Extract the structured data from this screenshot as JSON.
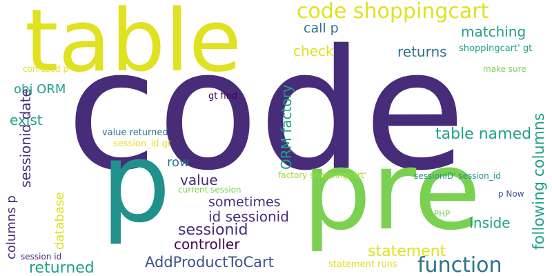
{
  "palette": {
    "dark_purple": "#472c7a",
    "deep_purple": "#440154",
    "slate_blue": "#3b528b",
    "steel_blue": "#2c728e",
    "teal": "#21918c",
    "sea_green": "#1fa187",
    "green": "#3bbb75",
    "lime": "#7ad151",
    "light_lime": "#a0da39",
    "yellow": "#e0e120"
  },
  "words": [
    {
      "text": "code",
      "color": "dark_purple"
    },
    {
      "text": "table",
      "color": "yellow"
    },
    {
      "text": "p",
      "color": "teal"
    },
    {
      "text": "pre",
      "color": "lime"
    },
    {
      "text": "code shoppingcart",
      "color": "yellow"
    },
    {
      "text": "matching",
      "color": "sea_green"
    },
    {
      "text": "call p",
      "color": "steel_blue"
    },
    {
      "text": "check",
      "color": "yellow"
    },
    {
      "text": "returns",
      "color": "steel_blue"
    },
    {
      "text": "shoppingcart' gt",
      "color": "sea_green"
    },
    {
      "text": "make sure",
      "color": "lime"
    },
    {
      "text": "confused p",
      "color": "yellow"
    },
    {
      "text": "obj ORM",
      "color": "sea_green"
    },
    {
      "text": "gt find",
      "color": "deep_purple"
    },
    {
      "text": "exist",
      "color": "sea_green"
    },
    {
      "text": "ORM factory",
      "color": "sea_green"
    },
    {
      "text": "following columns",
      "color": "sea_green"
    },
    {
      "text": "table named",
      "color": "sea_green"
    },
    {
      "text": "value returned",
      "color": "steel_blue"
    },
    {
      "text": "session_id gt",
      "color": "yellow"
    },
    {
      "text": "sessionid date",
      "color": "dark_purple"
    },
    {
      "text": "row",
      "color": "steel_blue"
    },
    {
      "text": "value",
      "color": "dark_purple"
    },
    {
      "text": "current session",
      "color": "lime"
    },
    {
      "text": "factory shoppingcart'",
      "color": "light_lime"
    },
    {
      "text": "sessionID' session_id",
      "color": "teal"
    },
    {
      "text": "columns p",
      "color": "dark_purple"
    },
    {
      "text": "database",
      "color": "yellow"
    },
    {
      "text": "sometimes",
      "color": "dark_purple"
    },
    {
      "text": "p Now",
      "color": "slate_blue"
    },
    {
      "text": "id sessionid",
      "color": "dark_purple"
    },
    {
      "text": "id PHP",
      "color": "lime"
    },
    {
      "text": "Inside",
      "color": "sea_green"
    },
    {
      "text": "sessionid",
      "color": "dark_purple"
    },
    {
      "text": "controller",
      "color": "deep_purple"
    },
    {
      "text": "statement",
      "color": "yellow"
    },
    {
      "text": "function",
      "color": "steel_blue"
    },
    {
      "text": "session id",
      "color": "dark_purple"
    },
    {
      "text": "returned",
      "color": "sea_green"
    },
    {
      "text": "AddProductToCart",
      "color": "slate_blue"
    },
    {
      "text": "statement runs",
      "color": "yellow"
    }
  ]
}
